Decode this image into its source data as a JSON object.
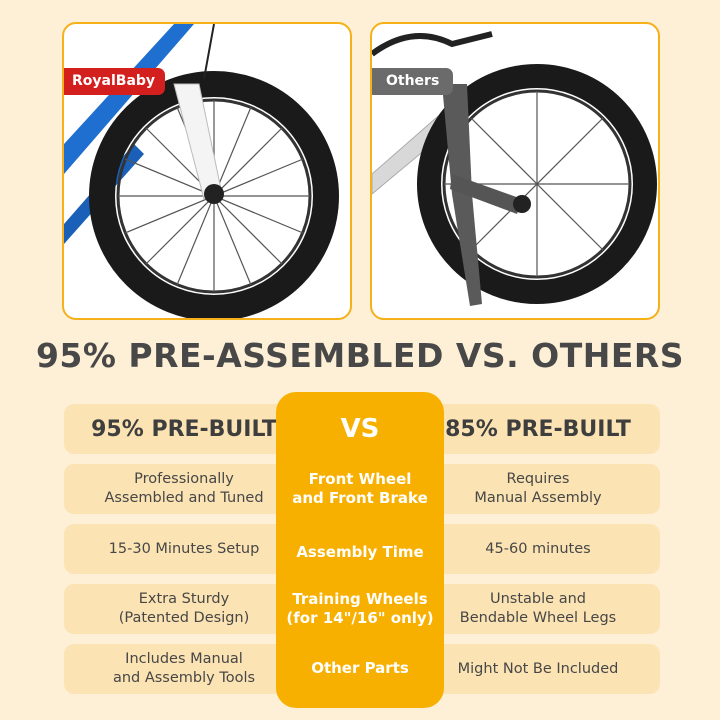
{
  "images": {
    "left_label": "RoyalBaby",
    "right_label": "Others",
    "colors": {
      "left_label_bg": "#d41f1f",
      "right_label_bg": "#6b6b6b",
      "accent": "#f7b000",
      "cell_bg": "#fbe3b3",
      "page_bg": "#fdf0d6"
    }
  },
  "title": "95% PRE-ASSEMBLED VS. OTHERS",
  "comparison": {
    "left_header": "95% PRE-BUILT",
    "center_header": "VS",
    "right_header": "85% PRE-BUILT",
    "rows": [
      {
        "left": "Professionally\nAssembled and Tuned",
        "center": "Front Wheel\nand Front Brake",
        "right": "Requires\nManual Assembly"
      },
      {
        "left": "15-30 Minutes Setup",
        "center": "Assembly Time",
        "right": "45-60 minutes"
      },
      {
        "left": "Extra Sturdy\n(Patented Design)",
        "center": "Training Wheels\n(for 14\"/16\" only)",
        "right": "Unstable and\nBendable Wheel Legs"
      },
      {
        "left": "Includes Manual\nand Assembly Tools",
        "center": "Other Parts",
        "right": "Might Not Be Included"
      }
    ]
  }
}
